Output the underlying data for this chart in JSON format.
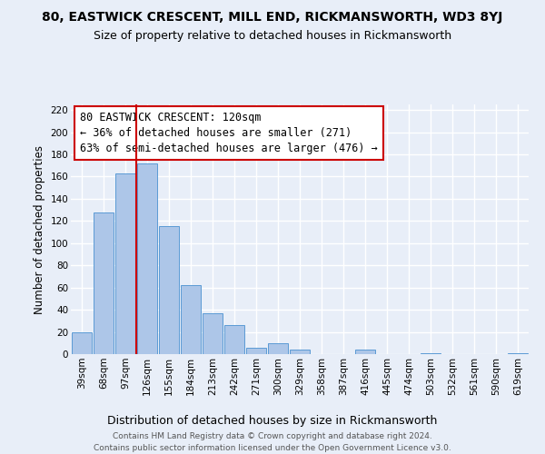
{
  "title": "80, EASTWICK CRESCENT, MILL END, RICKMANSWORTH, WD3 8YJ",
  "subtitle": "Size of property relative to detached houses in Rickmansworth",
  "xlabel": "Distribution of detached houses by size in Rickmansworth",
  "ylabel": "Number of detached properties",
  "categories": [
    "39sqm",
    "68sqm",
    "97sqm",
    "126sqm",
    "155sqm",
    "184sqm",
    "213sqm",
    "242sqm",
    "271sqm",
    "300sqm",
    "329sqm",
    "358sqm",
    "387sqm",
    "416sqm",
    "445sqm",
    "474sqm",
    "503sqm",
    "532sqm",
    "561sqm",
    "590sqm",
    "619sqm"
  ],
  "values": [
    20,
    128,
    163,
    172,
    115,
    62,
    37,
    26,
    6,
    10,
    4,
    0,
    0,
    4,
    0,
    0,
    1,
    0,
    0,
    0,
    1
  ],
  "bar_color": "#adc6e8",
  "bar_edge_color": "#5b9bd5",
  "vline_index": 2.5,
  "vline_color": "#cc0000",
  "ann_text_line1": "80 EASTWICK CRESCENT: 120sqm",
  "ann_text_line2": "← 36% of detached houses are smaller (271)",
  "ann_text_line3": "63% of semi-detached houses are larger (476) →",
  "annotation_box_color": "#ffffff",
  "annotation_box_edge_color": "#cc0000",
  "ylim": [
    0,
    225
  ],
  "yticks": [
    0,
    20,
    40,
    60,
    80,
    100,
    120,
    140,
    160,
    180,
    200,
    220
  ],
  "bg_color": "#e8eef8",
  "grid_color": "#ffffff",
  "title_fontsize": 10,
  "subtitle_fontsize": 9,
  "ylabel_fontsize": 8.5,
  "xlabel_fontsize": 9,
  "tick_fontsize": 7.5,
  "annotation_fontsize": 8.5,
  "footer_fontsize": 6.5,
  "footer_line1": "Contains HM Land Registry data © Crown copyright and database right 2024.",
  "footer_line2": "Contains public sector information licensed under the Open Government Licence v3.0."
}
